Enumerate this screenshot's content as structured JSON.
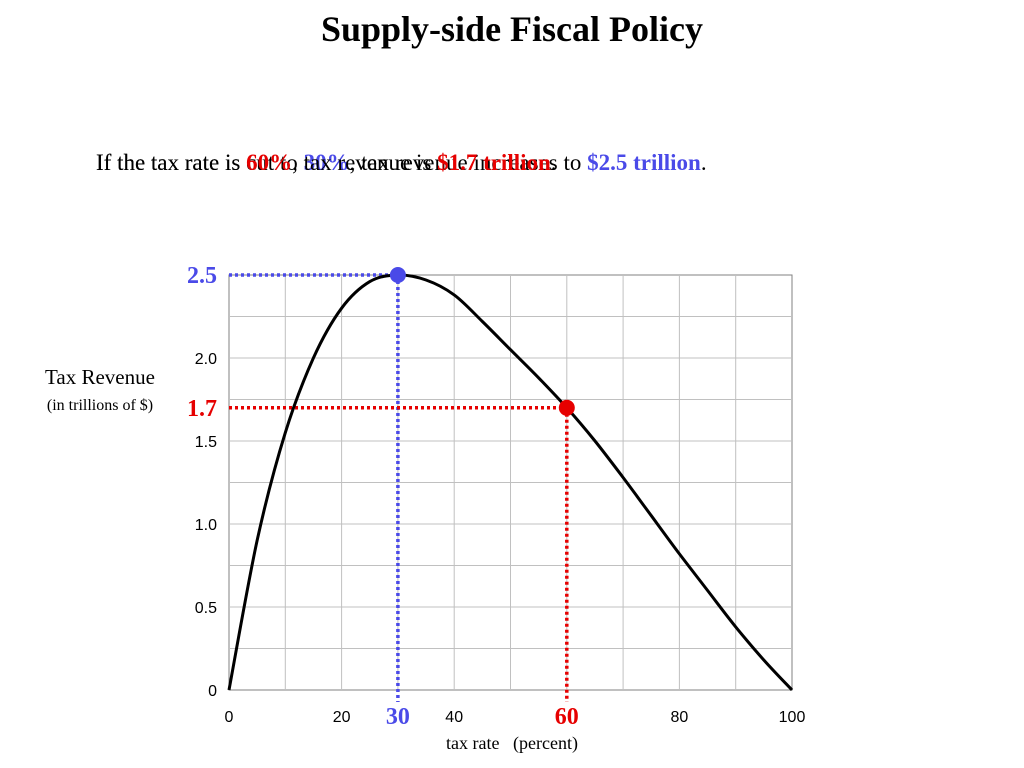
{
  "slide": {
    "title": "Supply-side Fiscal Policy",
    "caption_cut": {
      "pre": "If the tax rate is cut to ",
      "rate": "30%",
      "mid": ", tax revenue increases to ",
      "revenue": "$2.5 trillion",
      "post": "."
    },
    "caption_initial": {
      "pre": "If the tax rate is ",
      "rate": "60%",
      "mid": ", tax revenue is ",
      "revenue": "$1.7 trillion",
      "post": "."
    }
  },
  "colors": {
    "blue": "#4a4ae8",
    "red": "#e60000",
    "curve": "#000000",
    "grid": "#c0c0c0"
  },
  "chart_data": {
    "type": "line",
    "title": "",
    "xlabel": "tax rate   (percent)",
    "ylabel": "Tax Revenue",
    "ylabel_sub": "(in trillions of $)",
    "xlim": [
      0,
      100
    ],
    "ylim": [
      0,
      2.5
    ],
    "x_ticks": [
      "0",
      "20",
      "40",
      "80",
      "100"
    ],
    "x_tick_values": [
      0,
      20,
      40,
      80,
      100
    ],
    "y_ticks": [
      "0",
      "0.5",
      "1.0",
      "1.5",
      "2.0"
    ],
    "y_tick_values": [
      0,
      0.5,
      1.0,
      1.5,
      2.0
    ],
    "grid": true,
    "series": [
      {
        "x": [
          0,
          5,
          10,
          15,
          20,
          25,
          30,
          35,
          40,
          45,
          50,
          55,
          60,
          65,
          70,
          75,
          80,
          85,
          90,
          95,
          100
        ],
        "y": [
          0,
          0.9,
          1.55,
          2.0,
          2.3,
          2.46,
          2.5,
          2.47,
          2.38,
          2.22,
          2.05,
          1.88,
          1.7,
          1.5,
          1.28,
          1.05,
          0.82,
          0.6,
          0.38,
          0.18,
          0
        ]
      }
    ],
    "points": [
      {
        "x": 30,
        "y": 2.5,
        "x_label": "30",
        "y_label": "2.5",
        "color": "#4a4ae8"
      },
      {
        "x": 60,
        "y": 1.7,
        "x_label": "60",
        "y_label": "1.7",
        "color": "#e60000"
      }
    ]
  }
}
